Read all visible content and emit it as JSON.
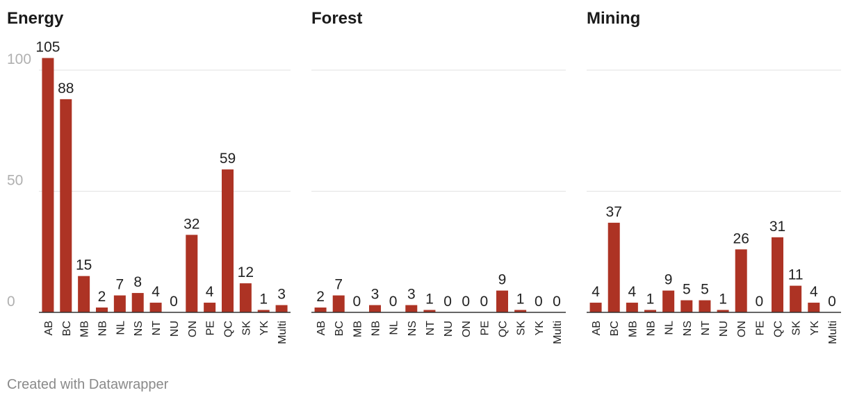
{
  "chart_data": {
    "type": "bar",
    "layout": "small-multiples",
    "ylim": [
      0,
      100
    ],
    "yticks": [
      0,
      50,
      100
    ],
    "grid": true,
    "bar_color": "#ad3324",
    "categories": [
      "AB",
      "BC",
      "MB",
      "NB",
      "NL",
      "NS",
      "NT",
      "NU",
      "ON",
      "PE",
      "QC",
      "SK",
      "YK",
      "Multi"
    ],
    "panels": [
      {
        "title": "Energy",
        "values": [
          105,
          88,
          15,
          2,
          7,
          8,
          4,
          0,
          32,
          4,
          59,
          12,
          1,
          3
        ]
      },
      {
        "title": "Forest",
        "values": [
          2,
          7,
          0,
          3,
          0,
          3,
          1,
          0,
          0,
          0,
          9,
          1,
          0,
          0
        ]
      },
      {
        "title": "Mining",
        "values": [
          4,
          37,
          4,
          1,
          9,
          5,
          5,
          1,
          26,
          0,
          31,
          11,
          4,
          0
        ]
      }
    ]
  },
  "footer": {
    "credit": "Created with Datawrapper"
  }
}
